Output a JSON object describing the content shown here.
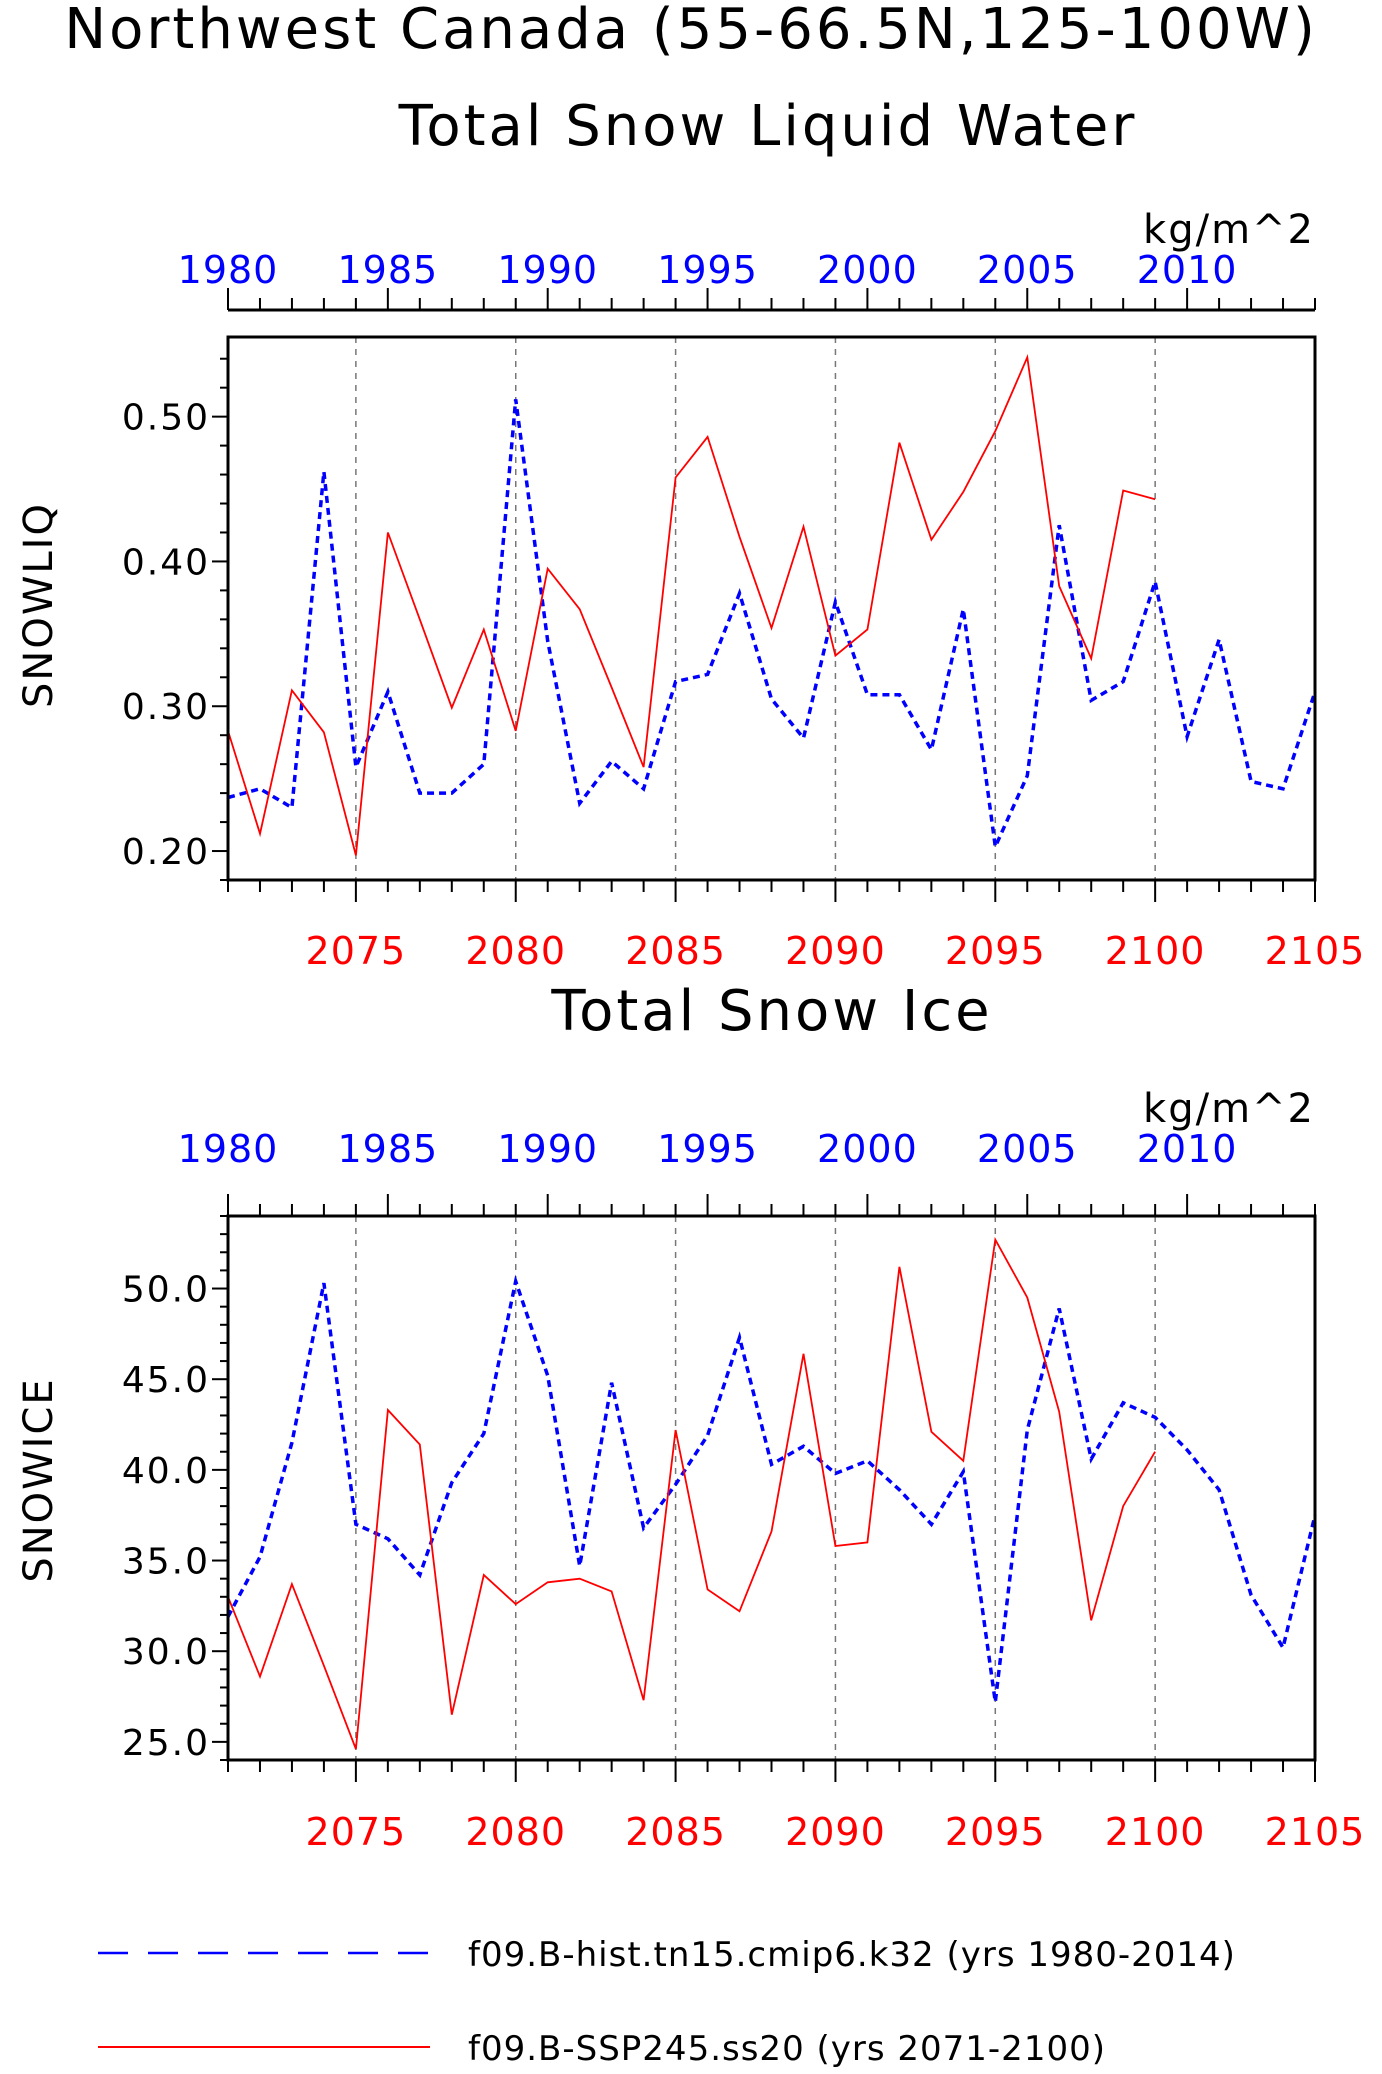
{
  "title": "Northwest Canada (55-66.5N,125-100W)",
  "legend": {
    "hist_label": "f09.B-hist.tn15.cmip6.k32 (yrs 1980-2014)",
    "ssp_label": "f09.B-SSP245.ss20 (yrs 2071-2100)"
  },
  "colors": {
    "hist": "#0000ff",
    "ssp": "#ff0000",
    "axis": "#000000",
    "grid": "#777777"
  },
  "chart_data": [
    {
      "type": "line",
      "title": "Total Snow Liquid Water",
      "units": "kg/m^2",
      "ylabel": "SNOWLIQ",
      "ylim": [
        0.18,
        0.555
      ],
      "yticks": [
        0.2,
        0.3,
        0.4,
        0.5
      ],
      "ytick_labels": [
        "0.20",
        "0.30",
        "0.40",
        "0.50"
      ],
      "top_xaxis": {
        "ticks": [
          1980,
          1985,
          1990,
          1995,
          2000,
          2005,
          2010
        ],
        "labels": [
          "1980",
          "1985",
          "1990",
          "1995",
          "2000",
          "2005",
          "2010"
        ],
        "color": "#0000ff"
      },
      "bottom_xaxis": {
        "range": [
          2071,
          2105
        ],
        "ticks": [
          2075,
          2080,
          2085,
          2090,
          2095,
          2100,
          2105
        ],
        "labels": [
          "2075",
          "2080",
          "2085",
          "2090",
          "2095",
          "2100",
          "2105"
        ],
        "color": "#ff0000"
      },
      "grid_x": [
        2075,
        2080,
        2085,
        2090,
        2095,
        2100
      ],
      "series": [
        {
          "key": "hist",
          "style": "dashed",
          "color": "#0000ff",
          "x_note": "plotted on bottom axis; x = year + 91",
          "x": [
            2071,
            2072,
            2073,
            2074,
            2075,
            2076,
            2077,
            2078,
            2079,
            2080,
            2081,
            2082,
            2083,
            2084,
            2085,
            2086,
            2087,
            2088,
            2089,
            2090,
            2091,
            2092,
            2093,
            2094,
            2095,
            2096,
            2097,
            2098,
            2099,
            2100,
            2101,
            2102,
            2103,
            2104,
            2105
          ],
          "values": [
            0.237,
            0.243,
            0.23,
            0.462,
            0.258,
            0.31,
            0.24,
            0.24,
            0.26,
            0.512,
            0.345,
            0.233,
            0.262,
            0.243,
            0.317,
            0.322,
            0.378,
            0.305,
            0.278,
            0.372,
            0.308,
            0.308,
            0.27,
            0.367,
            0.203,
            0.252,
            0.425,
            0.304,
            0.317,
            0.386,
            0.279,
            0.346,
            0.248,
            0.243,
            0.31
          ]
        },
        {
          "key": "ssp",
          "style": "solid",
          "color": "#ff0000",
          "x": [
            2071,
            2072,
            2073,
            2074,
            2075,
            2076,
            2077,
            2078,
            2079,
            2080,
            2081,
            2082,
            2083,
            2084,
            2085,
            2086,
            2087,
            2088,
            2089,
            2090,
            2091,
            2092,
            2093,
            2094,
            2095,
            2096,
            2097,
            2098,
            2099,
            2100
          ],
          "values": [
            0.283,
            0.212,
            0.311,
            0.282,
            0.197,
            0.42,
            0.36,
            0.299,
            0.353,
            0.283,
            0.395,
            0.367,
            0.313,
            0.258,
            0.458,
            0.486,
            0.417,
            0.354,
            0.424,
            0.335,
            0.353,
            0.482,
            0.415,
            0.448,
            0.49,
            0.541,
            0.383,
            0.333,
            0.449,
            0.443
          ]
        }
      ]
    },
    {
      "type": "line",
      "title": "Total Snow Ice",
      "units": "kg/m^2",
      "ylabel": "SNOWICE",
      "ylim": [
        24.0,
        54.0
      ],
      "yticks": [
        25,
        30,
        35,
        40,
        45,
        50
      ],
      "ytick_labels": [
        "25.0",
        "30.0",
        "35.0",
        "40.0",
        "45.0",
        "50.0"
      ],
      "top_xaxis": {
        "ticks": [
          1980,
          1985,
          1990,
          1995,
          2000,
          2005,
          2010
        ],
        "labels": [
          "1980",
          "1985",
          "1990",
          "1995",
          "2000",
          "2005",
          "2010"
        ],
        "color": "#0000ff"
      },
      "bottom_xaxis": {
        "range": [
          2071,
          2105
        ],
        "ticks": [
          2075,
          2080,
          2085,
          2090,
          2095,
          2100,
          2105
        ],
        "labels": [
          "2075",
          "2080",
          "2085",
          "2090",
          "2095",
          "2100",
          "2105"
        ],
        "color": "#ff0000"
      },
      "grid_x": [
        2075,
        2080,
        2085,
        2090,
        2095,
        2100
      ],
      "series": [
        {
          "key": "hist",
          "style": "dashed",
          "color": "#0000ff",
          "x": [
            2071,
            2072,
            2073,
            2074,
            2075,
            2076,
            2077,
            2078,
            2079,
            2080,
            2081,
            2082,
            2083,
            2084,
            2085,
            2086,
            2087,
            2088,
            2089,
            2090,
            2091,
            2092,
            2093,
            2094,
            2095,
            2096,
            2097,
            2098,
            2099,
            2100,
            2101,
            2102,
            2103,
            2104,
            2105
          ],
          "values": [
            31.9,
            35.2,
            41.5,
            50.3,
            37.0,
            36.2,
            34.2,
            39.3,
            42.0,
            50.4,
            45.2,
            34.7,
            44.8,
            36.8,
            39.2,
            41.9,
            47.3,
            40.3,
            41.3,
            39.8,
            40.5,
            38.9,
            37.0,
            39.9,
            27.2,
            42.2,
            48.9,
            40.6,
            43.7,
            42.9,
            41.1,
            38.9,
            33.1,
            30.2,
            37.5
          ]
        },
        {
          "key": "ssp",
          "style": "solid",
          "color": "#ff0000",
          "x": [
            2071,
            2072,
            2073,
            2074,
            2075,
            2076,
            2077,
            2078,
            2079,
            2080,
            2081,
            2082,
            2083,
            2084,
            2085,
            2086,
            2087,
            2088,
            2089,
            2090,
            2091,
            2092,
            2093,
            2094,
            2095,
            2096,
            2097,
            2098,
            2099,
            2100
          ],
          "values": [
            33.0,
            28.6,
            33.7,
            29.2,
            24.6,
            43.3,
            41.4,
            26.5,
            34.2,
            32.6,
            33.8,
            34.0,
            33.3,
            27.3,
            42.2,
            33.4,
            32.2,
            36.6,
            46.4,
            35.8,
            36.0,
            51.2,
            42.1,
            40.5,
            52.7,
            49.5,
            43.2,
            31.7,
            38.0,
            41.0
          ]
        }
      ]
    }
  ]
}
